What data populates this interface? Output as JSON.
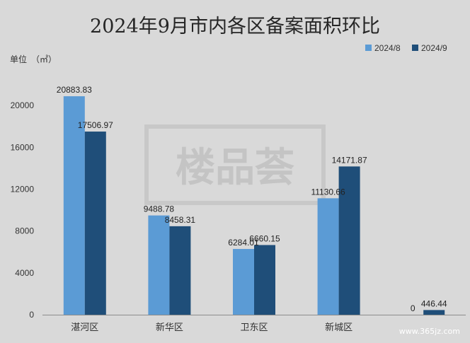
{
  "chart_data": {
    "type": "bar",
    "title": "2024年9月市内各区备案面积环比",
    "unit_label": "单位　（㎡）",
    "categories": [
      "湛河区",
      "新华区",
      "卫东区",
      "新城区",
      ""
    ],
    "series": [
      {
        "name": "2024/8",
        "color": "#5b9bd5",
        "values": [
          20883.83,
          9488.78,
          6284.01,
          11130.66,
          0
        ],
        "labels": [
          "20883.83",
          "9488.78",
          "6284.01",
          "11130.66",
          "0"
        ]
      },
      {
        "name": "2024/9",
        "color": "#1f4e79",
        "values": [
          17506.97,
          8458.31,
          6660.15,
          14171.87,
          446.44
        ],
        "labels": [
          "17506.97",
          "8458.31",
          "6660.15",
          "14171.87",
          "446.44"
        ]
      }
    ],
    "yticks": [
      "0",
      "4000",
      "8000",
      "12000",
      "16000",
      "20000"
    ],
    "ylim": [
      0,
      24000
    ],
    "grid": false,
    "legend_position": "top-right"
  },
  "watermark": {
    "text": "楼品荟"
  },
  "corner_mark": {
    "text": "www.365jz.com"
  }
}
